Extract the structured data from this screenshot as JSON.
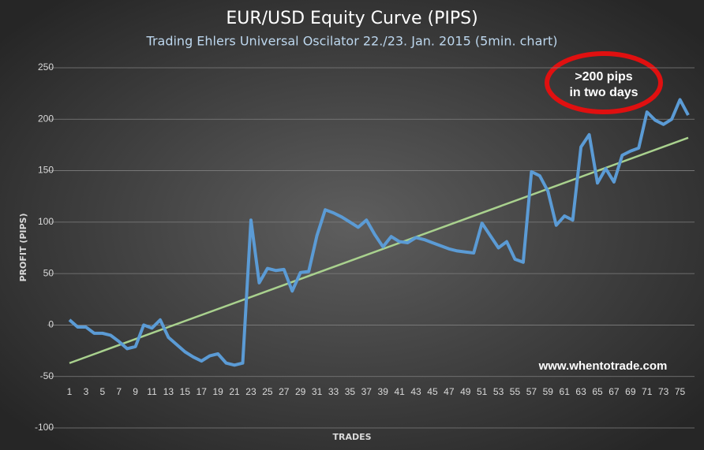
{
  "chart_data": {
    "type": "line",
    "title": "EUR/USD Equity Curve (PIPS)",
    "subtitle": "Trading Ehlers Universal Oscilator 22./23. Jan. 2015 (5min. chart)",
    "x_label": "TRADES",
    "y_label": "PROFIT (PIPS)",
    "annotations": [
      ">200 pips",
      "in two days",
      "www.whentotrade.com"
    ],
    "x": [
      1,
      2,
      3,
      4,
      5,
      6,
      7,
      8,
      9,
      10,
      11,
      12,
      13,
      14,
      15,
      16,
      17,
      18,
      19,
      20,
      21,
      22,
      23,
      24,
      25,
      26,
      27,
      28,
      29,
      30,
      31,
      32,
      33,
      34,
      35,
      36,
      37,
      38,
      39,
      40,
      41,
      42,
      43,
      44,
      45,
      46,
      47,
      48,
      49,
      50,
      51,
      52,
      53,
      54,
      55,
      56,
      57,
      58,
      59,
      60,
      61,
      62,
      63,
      64,
      65,
      66,
      67,
      68,
      69,
      70,
      71,
      72,
      73,
      74,
      75,
      76
    ],
    "series": [
      {
        "color": "#5b9bd5",
        "values": [
          5,
          -2,
          -2,
          -8,
          -8,
          -10,
          -16,
          -23,
          -21,
          0,
          -3,
          5,
          -12,
          -19,
          -26,
          -31,
          -35,
          -30,
          -28,
          -37,
          -39,
          -37,
          102,
          41,
          55,
          53,
          54,
          33,
          51,
          52,
          87,
          112,
          109,
          105,
          100,
          95,
          102,
          88,
          76,
          86,
          81,
          80,
          85,
          83,
          80,
          77,
          74,
          72,
          71,
          70,
          99,
          87,
          75,
          81,
          64,
          61,
          149,
          145,
          130,
          97,
          106,
          102,
          173,
          185,
          138,
          152,
          139,
          165,
          169,
          172,
          207,
          199,
          195,
          200,
          219,
          204
        ]
      }
    ],
    "trend": {
      "color": "#a9d18e",
      "x": [
        1,
        76
      ],
      "values": [
        -37,
        182
      ]
    },
    "xlim": [
      1,
      76
    ],
    "xticks": [
      1,
      3,
      5,
      7,
      9,
      11,
      13,
      15,
      17,
      19,
      21,
      23,
      25,
      27,
      29,
      31,
      33,
      35,
      37,
      39,
      41,
      43,
      45,
      47,
      49,
      51,
      53,
      55,
      57,
      59,
      61,
      63,
      65,
      67,
      69,
      71,
      73,
      75
    ],
    "ylim": [
      -100,
      250
    ],
    "yticks": [
      -100,
      -50,
      0,
      50,
      100,
      150,
      200,
      250
    ],
    "grid": true
  }
}
